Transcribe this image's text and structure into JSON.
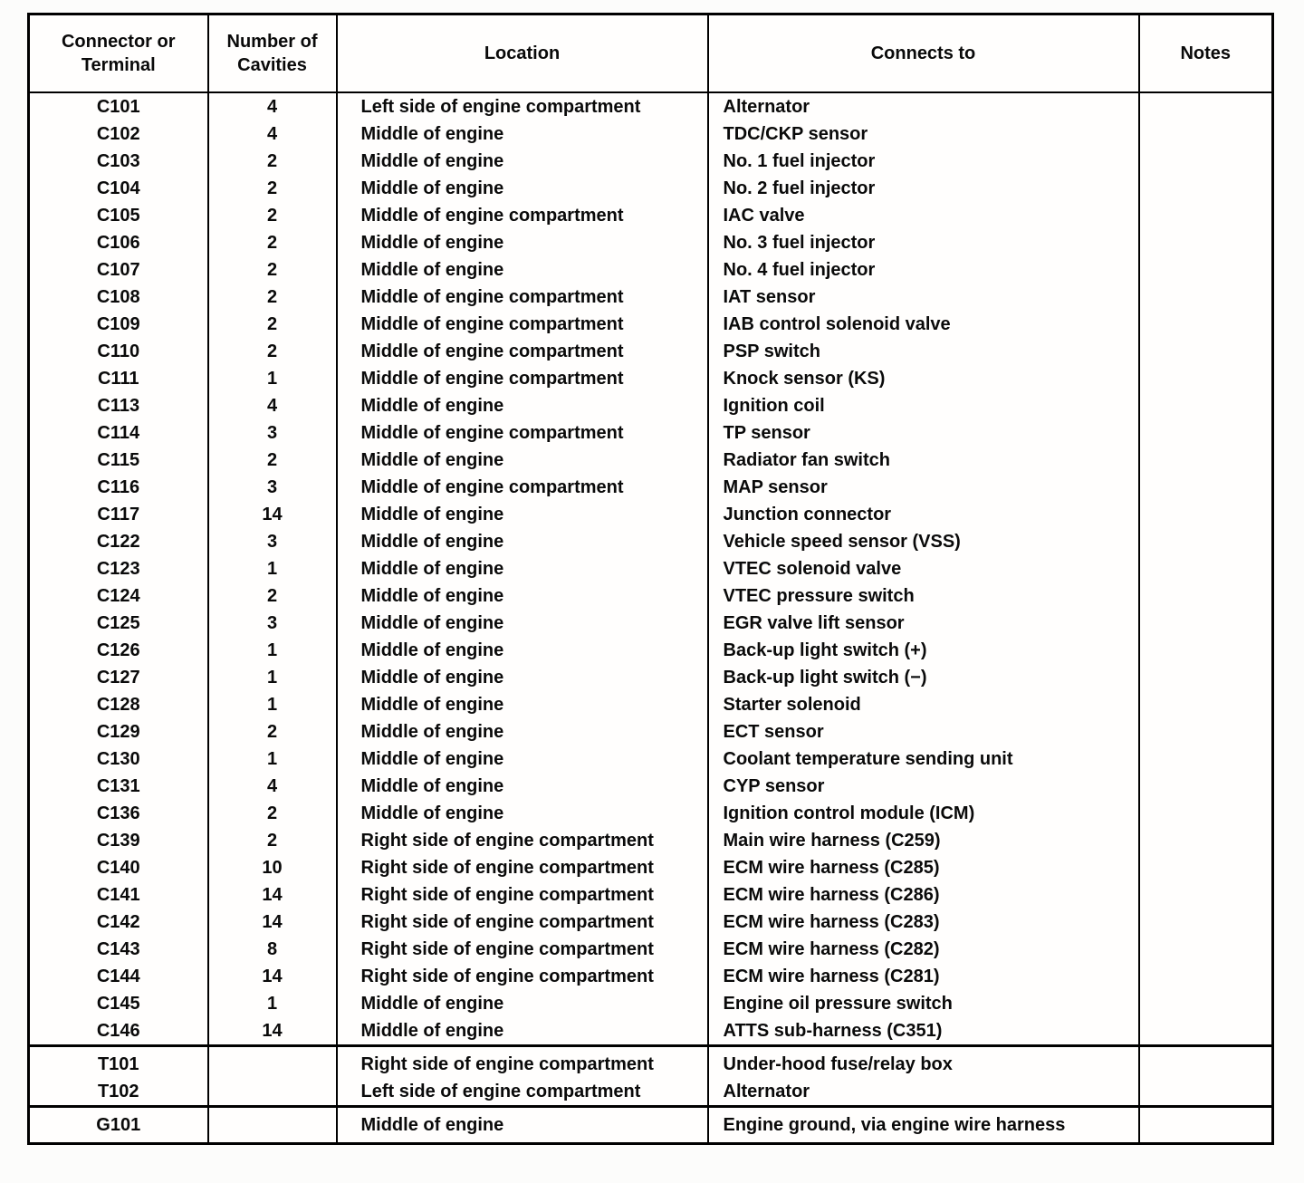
{
  "table": {
    "headers": [
      "Connector or Terminal",
      "Number of Cavities",
      "Location",
      "Connects to",
      "Notes"
    ],
    "sections": [
      {
        "rows": [
          [
            "C101",
            "4",
            "Left side of engine compartment",
            "Alternator",
            ""
          ],
          [
            "C102",
            "4",
            "Middle of engine",
            "TDC/CKP sensor",
            ""
          ],
          [
            "C103",
            "2",
            "Middle of engine",
            "No. 1 fuel injector",
            ""
          ],
          [
            "C104",
            "2",
            "Middle of engine",
            "No. 2 fuel injector",
            ""
          ],
          [
            "C105",
            "2",
            "Middle of engine compartment",
            "IAC valve",
            ""
          ],
          [
            "C106",
            "2",
            "Middle of engine",
            "No. 3 fuel injector",
            ""
          ],
          [
            "C107",
            "2",
            "Middle of engine",
            "No. 4 fuel injector",
            ""
          ],
          [
            "C108",
            "2",
            "Middle of engine compartment",
            "IAT sensor",
            ""
          ],
          [
            "C109",
            "2",
            "Middle of engine compartment",
            "IAB control solenoid valve",
            ""
          ],
          [
            "C110",
            "2",
            "Middle of engine compartment",
            "PSP switch",
            ""
          ],
          [
            "C111",
            "1",
            "Middle of engine compartment",
            "Knock sensor (KS)",
            ""
          ],
          [
            "C113",
            "4",
            "Middle of engine",
            "Ignition coil",
            ""
          ],
          [
            "C114",
            "3",
            "Middle of engine compartment",
            "TP sensor",
            ""
          ],
          [
            "C115",
            "2",
            "Middle of engine",
            "Radiator fan switch",
            ""
          ],
          [
            "C116",
            "3",
            "Middle of engine compartment",
            "MAP sensor",
            ""
          ],
          [
            "C117",
            "14",
            "Middle of engine",
            "Junction connector",
            ""
          ],
          [
            "C122",
            "3",
            "Middle of engine",
            "Vehicle speed sensor (VSS)",
            ""
          ],
          [
            "C123",
            "1",
            "Middle of engine",
            "VTEC solenoid valve",
            ""
          ],
          [
            "C124",
            "2",
            "Middle of engine",
            "VTEC pressure switch",
            ""
          ],
          [
            "C125",
            "3",
            "Middle of engine",
            "EGR valve lift sensor",
            ""
          ],
          [
            "C126",
            "1",
            "Middle of engine",
            "Back-up light switch (+)",
            ""
          ],
          [
            "C127",
            "1",
            "Middle of engine",
            "Back-up light switch (−)",
            ""
          ],
          [
            "C128",
            "1",
            "Middle of engine",
            "Starter solenoid",
            ""
          ],
          [
            "C129",
            "2",
            "Middle of engine",
            "ECT sensor",
            ""
          ],
          [
            "C130",
            "1",
            "Middle of engine",
            "Coolant temperature sending unit",
            ""
          ],
          [
            "C131",
            "4",
            "Middle of engine",
            "CYP sensor",
            ""
          ],
          [
            "C136",
            "2",
            "Middle of engine",
            "Ignition control module (ICM)",
            ""
          ],
          [
            "C139",
            "2",
            "Right side of engine compartment",
            "Main wire harness (C259)",
            ""
          ],
          [
            "C140",
            "10",
            "Right side of engine compartment",
            "ECM wire harness (C285)",
            ""
          ],
          [
            "C141",
            "14",
            "Right side of engine compartment",
            "ECM wire harness (C286)",
            ""
          ],
          [
            "C142",
            "14",
            "Right side of engine compartment",
            "ECM wire harness (C283)",
            ""
          ],
          [
            "C143",
            "8",
            "Right side of engine compartment",
            "ECM wire harness (C282)",
            ""
          ],
          [
            "C144",
            "14",
            "Right side of engine compartment",
            "ECM wire harness (C281)",
            ""
          ],
          [
            "C145",
            "1",
            "Middle of engine",
            "Engine oil pressure switch",
            ""
          ],
          [
            "C146",
            "14",
            "Middle of engine",
            "ATTS sub-harness (C351)",
            ""
          ]
        ]
      },
      {
        "rows": [
          [
            "T101",
            "",
            "Right side of engine compartment",
            "Under-hood fuse/relay box",
            ""
          ],
          [
            "T102",
            "",
            "Left side of engine compartment",
            "Alternator",
            ""
          ]
        ]
      },
      {
        "rows": [
          [
            "G101",
            "",
            "Middle of engine",
            "Engine ground, via engine wire harness",
            ""
          ]
        ]
      }
    ]
  }
}
